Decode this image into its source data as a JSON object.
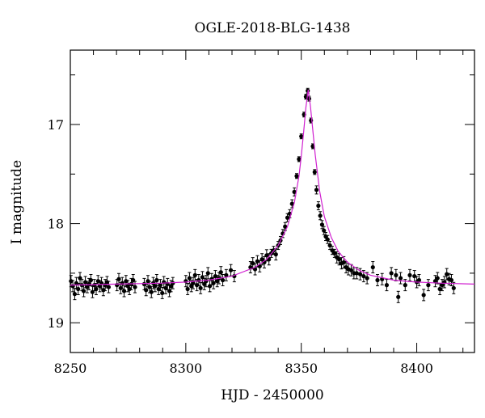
{
  "chart_data": {
    "type": "scatter",
    "title": "OGLE-2018-BLG-1438",
    "xlabel": "HJD - 2450000",
    "ylabel": "I magnitude",
    "xlim": [
      8250,
      8425
    ],
    "ylim": [
      19.3,
      16.25
    ],
    "y_inverted": true,
    "x_ticks": [
      8250,
      8300,
      8350,
      8400
    ],
    "y_ticks": [
      17,
      18,
      19
    ],
    "grid": false,
    "legend": "none",
    "colors": {
      "data_points": "#000000",
      "model_curve": "#d020d0",
      "axes": "#000000"
    },
    "series": [
      {
        "kind": "points_with_errorbars",
        "x": [
          8250.3,
          8251.1,
          8251.9,
          8252.6,
          8253.4,
          8254.2,
          8255.0,
          8255.8,
          8256.5,
          8257.3,
          8258.1,
          8258.9,
          8259.6,
          8260.4,
          8261.2,
          8262.0,
          8262.8,
          8263.5,
          8264.3,
          8265.1,
          8265.9,
          8266.6,
          8270.2,
          8271.0,
          8271.8,
          8272.5,
          8273.3,
          8274.1,
          8274.9,
          8275.6,
          8276.4,
          8277.2,
          8278.0,
          8282.0,
          8282.8,
          8283.6,
          8284.3,
          8285.1,
          8285.9,
          8286.7,
          8287.4,
          8288.2,
          8289.0,
          8289.8,
          8290.5,
          8291.3,
          8292.1,
          8292.9,
          8293.6,
          8294.4,
          8300.0,
          8300.8,
          8301.6,
          8302.4,
          8303.2,
          8304.0,
          8304.8,
          8305.6,
          8306.4,
          8307.2,
          8308.0,
          8308.8,
          8309.6,
          8310.4,
          8311.2,
          8312.0,
          8312.8,
          8313.6,
          8314.4,
          8315.2,
          8316.0,
          8317.5,
          8319.5,
          8321.0,
          8328.0,
          8329.0,
          8330.0,
          8331.0,
          8332.0,
          8333.0,
          8334.0,
          8335.0,
          8336.0,
          8337.0,
          8338.0,
          8339.0,
          8340.0,
          8341.0,
          8342.0,
          8343.0,
          8344.0,
          8345.0,
          8346.0,
          8347.0,
          8348.0,
          8349.0,
          8350.0,
          8351.2,
          8352.0,
          8352.8,
          8353.4,
          8354.2,
          8355.0,
          8355.8,
          8356.6,
          8357.4,
          8358.2,
          8359.0,
          8359.8,
          8360.6,
          8361.4,
          8362.4,
          8363.4,
          8364.4,
          8365.4,
          8366.4,
          8367.4,
          8368.4,
          8369.4,
          8370.4,
          8371.6,
          8372.8,
          8374.0,
          8375.5,
          8377.0,
          8378.5,
          8381.0,
          8383.0,
          8385.0,
          8387.0,
          8389.0,
          8391.0,
          8392.0,
          8393.0,
          8395.0,
          8397.0,
          8399.0,
          8400.0,
          8401.0,
          8403.0,
          8405.0,
          8408.0,
          8409.0,
          8410.0,
          8411.0,
          8412.0,
          8413.0,
          8414.0,
          8415.0,
          8416.0
        ],
        "y": [
          18.58,
          18.63,
          18.71,
          18.6,
          18.66,
          18.55,
          18.62,
          18.68,
          18.59,
          18.64,
          18.61,
          18.57,
          18.69,
          18.62,
          18.66,
          18.58,
          18.63,
          18.6,
          18.67,
          18.62,
          18.59,
          18.64,
          18.62,
          18.56,
          18.65,
          18.6,
          18.68,
          18.58,
          18.63,
          18.66,
          18.61,
          18.57,
          18.64,
          18.61,
          18.67,
          18.58,
          18.64,
          18.69,
          18.6,
          18.63,
          18.57,
          18.66,
          18.62,
          18.7,
          18.59,
          18.65,
          18.61,
          18.68,
          18.63,
          18.6,
          18.58,
          18.66,
          18.55,
          18.63,
          18.6,
          18.52,
          18.62,
          18.57,
          18.65,
          18.54,
          18.61,
          18.58,
          18.5,
          18.63,
          18.56,
          18.6,
          18.53,
          18.58,
          18.55,
          18.49,
          18.57,
          18.52,
          18.47,
          18.53,
          18.44,
          18.4,
          18.46,
          18.38,
          18.43,
          18.36,
          18.39,
          18.32,
          18.36,
          18.3,
          18.27,
          18.31,
          18.22,
          18.17,
          18.1,
          18.03,
          17.94,
          17.9,
          17.8,
          17.68,
          17.52,
          17.35,
          17.12,
          16.9,
          16.72,
          16.66,
          16.74,
          16.96,
          17.22,
          17.48,
          17.66,
          17.82,
          17.92,
          18.01,
          18.07,
          18.13,
          18.16,
          18.22,
          18.27,
          18.3,
          18.34,
          18.36,
          18.4,
          18.39,
          18.44,
          18.46,
          18.47,
          18.5,
          18.5,
          18.51,
          18.53,
          18.55,
          18.44,
          18.57,
          18.56,
          18.62,
          18.5,
          18.52,
          18.74,
          18.55,
          18.62,
          18.52,
          18.53,
          18.59,
          18.57,
          18.72,
          18.62,
          18.58,
          18.55,
          18.66,
          18.62,
          18.59,
          18.51,
          18.56,
          18.57,
          18.65
        ]
      },
      {
        "kind": "model_curve",
        "x": [
          8250,
          8270,
          8290,
          8300,
          8310,
          8320,
          8330,
          8335,
          8340,
          8344,
          8347,
          8349,
          8350,
          8351,
          8352,
          8353,
          8354,
          8355,
          8356,
          8358,
          8360,
          8363,
          8366,
          8370,
          8375,
          8380,
          8390,
          8400,
          8410,
          8425
        ],
        "y": [
          18.62,
          18.61,
          18.6,
          18.59,
          18.57,
          18.53,
          18.44,
          18.36,
          18.22,
          18.03,
          17.79,
          17.52,
          17.32,
          17.08,
          16.83,
          16.65,
          16.82,
          17.06,
          17.3,
          17.68,
          17.93,
          18.14,
          18.28,
          18.39,
          18.47,
          18.52,
          18.57,
          18.59,
          18.6,
          18.61
        ]
      }
    ]
  }
}
